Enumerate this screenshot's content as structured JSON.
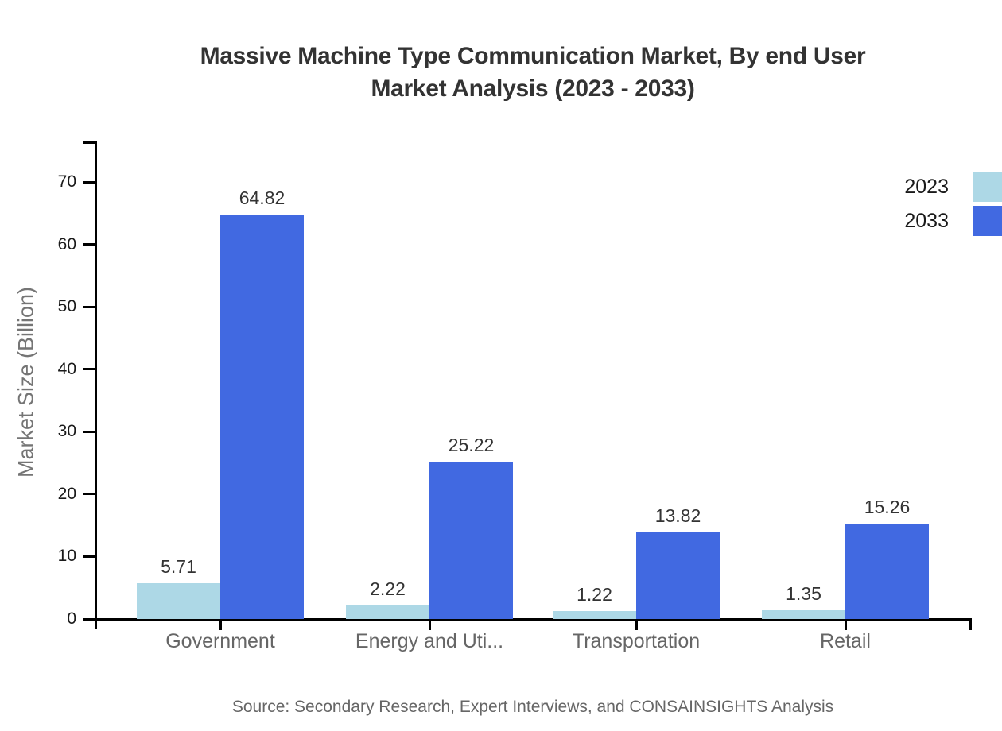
{
  "chart_data": {
    "type": "bar",
    "title": "Massive Machine Type Communication Market, By end User Market Analysis (2023 - 2033)",
    "title_lines": [
      "Massive Machine Type Communication Market, By end User",
      "Market Analysis (2023 - 2033)"
    ],
    "categories": [
      "Government",
      "Energy and Uti...",
      "Transportation",
      "Retail"
    ],
    "series": [
      {
        "name": "2023",
        "color": "#ADD8E6",
        "values": [
          5.71,
          2.22,
          1.22,
          1.35
        ]
      },
      {
        "name": "2033",
        "color": "#4169E1",
        "values": [
          64.82,
          25.22,
          13.82,
          15.26
        ]
      }
    ],
    "xlabel": "",
    "ylabel": "Market Size (Billion)",
    "yticks": [
      0,
      10,
      20,
      30,
      40,
      50,
      60,
      70
    ],
    "ylim": [
      0,
      77
    ],
    "grid": false,
    "legend_position": "top-right",
    "value_labels": true
  },
  "source_note": "Source: Secondary Research, Expert Interviews, and CONSAINSIGHTS Analysis",
  "colors": {
    "series_2023": "#ADD8E6",
    "series_2033": "#4169E1",
    "title_text": "#333333",
    "axis_line": "#000000",
    "tick_label": "#1a1a1a",
    "category_label": "#666666",
    "axis_title_text": "#757575",
    "source_text": "#666666",
    "background": "#ffffff"
  }
}
